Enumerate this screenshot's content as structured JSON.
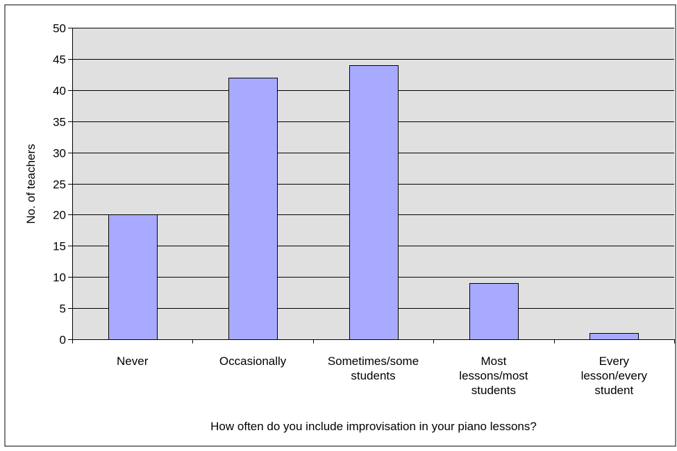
{
  "chart_data": {
    "type": "bar",
    "title": "",
    "xlabel": "How often do you include improvisation in your piano lessons?",
    "ylabel": "No. of teachers",
    "categories": [
      [
        "Never"
      ],
      [
        "Occasionally"
      ],
      [
        "Sometimes/some",
        "students"
      ],
      [
        "Most",
        "lessons/most",
        "students"
      ],
      [
        "Every",
        "lesson/every",
        "student"
      ]
    ],
    "values": [
      20,
      42,
      44,
      9,
      1
    ],
    "ylim": [
      0,
      50
    ],
    "yticks": [
      0,
      5,
      10,
      15,
      20,
      25,
      30,
      35,
      40,
      45,
      50
    ],
    "grid": true,
    "legend": "none",
    "colors": {
      "bar_fill": "#a8aaff",
      "bar_stroke": "#000000",
      "plot_background": "#e0e0e0",
      "gridline": "#000000"
    }
  }
}
